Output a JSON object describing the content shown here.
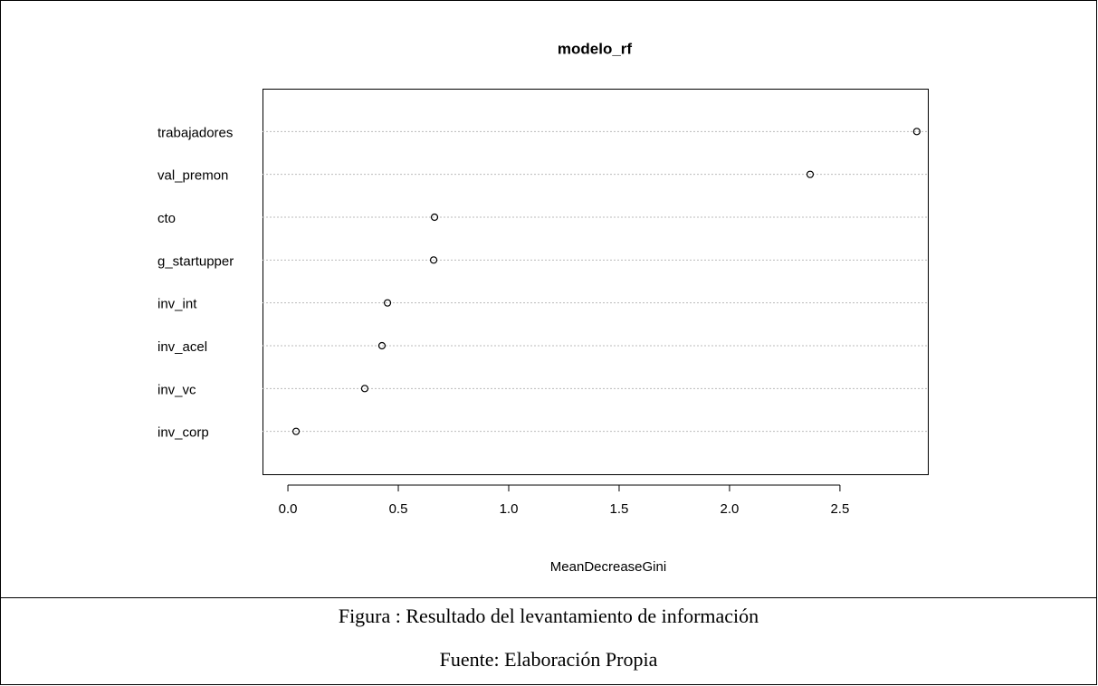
{
  "chart_data": {
    "type": "dot",
    "title": "modelo_rf",
    "categories": [
      "trabajadores",
      "val_premon",
      "cto",
      "g_startupper",
      "inv_int",
      "inv_acel",
      "inv_vc",
      "inv_corp"
    ],
    "values": [
      2.848,
      2.365,
      0.664,
      0.66,
      0.451,
      0.426,
      0.348,
      0.037
    ],
    "x_label": "MeanDecreaseGini",
    "xlim": [
      -0.115,
      2.898
    ],
    "xticks": [
      {
        "value": 0,
        "label": "0.0"
      },
      0.5,
      {
        "value": 1,
        "label": "1.0"
      },
      1.5,
      {
        "value": 2,
        "label": "2.0"
      },
      2.5
    ],
    "grid": true,
    "color": "#000000"
  },
  "caption": {
    "figure": "Figura : Resultado del levantamiento de información",
    "source": "Fuente: Elaboración Propia"
  }
}
